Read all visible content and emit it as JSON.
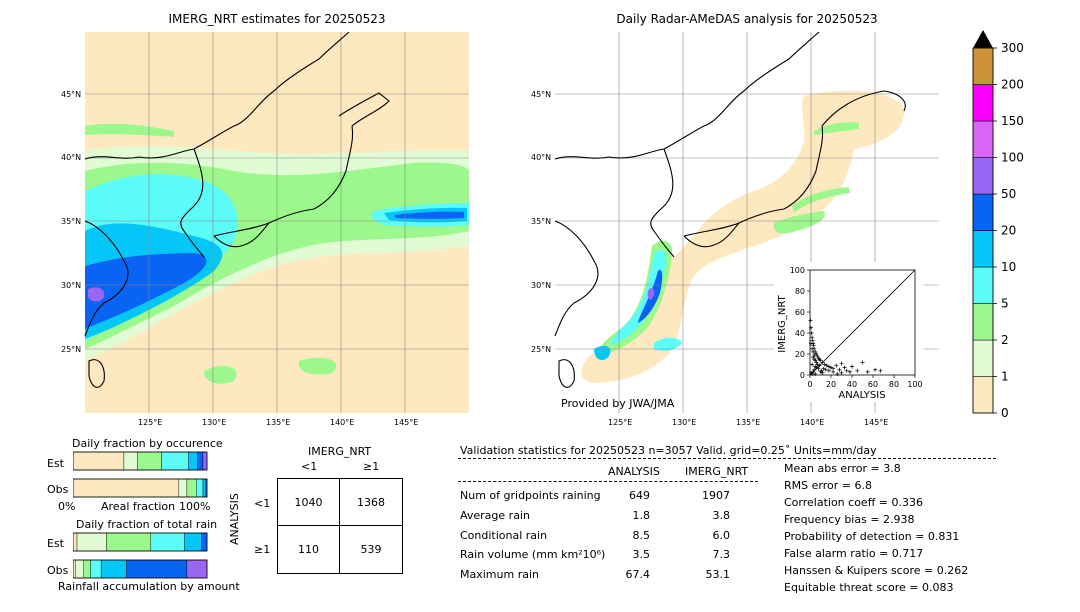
{
  "left_map": {
    "title": "IMERG_NRT estimates for 20250523",
    "lat_labels": [
      "45°N",
      "40°N",
      "35°N",
      "30°N",
      "25°N"
    ],
    "lon_labels": [
      "125°E",
      "130°E",
      "135°E",
      "140°E",
      "145°E"
    ]
  },
  "right_map": {
    "title": "Daily Radar-AMeDAS analysis for 20250523",
    "lat_labels": [
      "45°N",
      "40°N",
      "35°N",
      "30°N",
      "25°N"
    ],
    "lon_labels": [
      "125°E",
      "130°E",
      "135°E",
      "140°E",
      "145°E"
    ],
    "credit": "Provided by JWA/JMA"
  },
  "colorbar": {
    "levels": [
      "0",
      "1",
      "2",
      "5",
      "10",
      "20",
      "50",
      "100",
      "150",
      "200",
      "300"
    ],
    "colors": [
      "#fde8c0",
      "#e1fbd4",
      "#9cf88c",
      "#5bfbf7",
      "#04c7f8",
      "#0964f4",
      "#9a66f4",
      "#d966f7",
      "#fb01fb",
      "#cc9338"
    ]
  },
  "fraction_occurrence": {
    "title": "Daily fraction by occurence",
    "row_labels": [
      "Est",
      "Obs"
    ],
    "axis_left": "0%",
    "axis_mid": "Areal fraction",
    "axis_right": "100%",
    "est_fractions": [
      0.38,
      0.1,
      0.18,
      0.2,
      0.07,
      0.04,
      0.03
    ],
    "obs_fractions": [
      0.79,
      0.06,
      0.07,
      0.05,
      0.02,
      0.01
    ]
  },
  "fraction_total": {
    "title": "Daily fraction of total rain",
    "row_labels": [
      "Est",
      "Obs"
    ],
    "axis_caption": "Rainfall accumulation by amount",
    "est_fractions": [
      0.03,
      0.22,
      0.33,
      0.25,
      0.13,
      0.04
    ],
    "obs_fractions": [
      0.02,
      0.06,
      0.05,
      0.08,
      0.19,
      0.45,
      0.15
    ]
  },
  "contingency": {
    "title": "IMERG_NRT",
    "col_labels": [
      "<1",
      "≥1"
    ],
    "row_title": "ANALYSIS",
    "row_labels": [
      "<1",
      "≥1"
    ],
    "cells": [
      [
        "1040",
        "1368"
      ],
      [
        "110",
        "539"
      ]
    ]
  },
  "validation": {
    "header": "Validation statistics for 20250523  n=3057 Valid. grid=0.25˚ Units=mm/day",
    "col_analysis": "ANALYSIS",
    "col_imerg": "IMERG_NRT",
    "rows": [
      {
        "label": "Num of gridpoints raining",
        "analysis": "649",
        "imerg": "1907"
      },
      {
        "label": "Average rain",
        "analysis": "1.8",
        "imerg": "3.8"
      },
      {
        "label": "Conditional rain",
        "analysis": "8.5",
        "imerg": "6.0"
      },
      {
        "label": "Rain volume (mm km²10⁶)",
        "analysis": "3.5",
        "imerg": "7.3"
      },
      {
        "label": "Maximum rain",
        "analysis": "67.4",
        "imerg": "53.1"
      }
    ],
    "scores": [
      "Mean abs error =    3.8",
      "RMS error =    6.8",
      "Correlation coeff =  0.336",
      "Frequency bias =  2.938",
      "Probability of detection =  0.831",
      "False alarm ratio =  0.717",
      "Hanssen & Kuipers score =  0.262",
      "Equitable threat score =  0.083"
    ]
  },
  "chart_data": {
    "type": "scatter",
    "title": "",
    "xlabel": "ANALYSIS",
    "ylabel": "IMERG_NRT",
    "xlim": [
      0,
      100
    ],
    "ylim": [
      0,
      100
    ],
    "xticks": [
      "0",
      "20",
      "40",
      "60",
      "80",
      "100"
    ],
    "yticks": [
      "0",
      "20",
      "40",
      "60",
      "80",
      "100"
    ],
    "reference_line": "1:1",
    "x": [
      0.5,
      1,
      1.5,
      2,
      2.5,
      3,
      3.5,
      4,
      5,
      6,
      7,
      8,
      9,
      10,
      12,
      14,
      16,
      18,
      20,
      22,
      25,
      28,
      30,
      33,
      35,
      38,
      40,
      45,
      50,
      55,
      62,
      67,
      1,
      2,
      3,
      4,
      5,
      6,
      8,
      10,
      12,
      15,
      18,
      22,
      26,
      30,
      3,
      5,
      7,
      2,
      4,
      6,
      9,
      11,
      13,
      1,
      3,
      5,
      2,
      4
    ],
    "y": [
      52,
      45,
      40,
      36,
      33,
      30,
      28,
      25,
      22,
      20,
      18,
      16,
      15,
      14,
      12,
      10,
      9,
      8,
      7,
      6,
      9,
      5,
      11,
      7,
      4,
      3,
      8,
      4,
      12,
      3,
      5,
      4,
      2,
      1,
      3,
      5,
      8,
      12,
      6,
      3,
      2,
      5,
      4,
      3,
      1,
      2,
      17,
      14,
      10,
      25,
      19,
      7,
      9,
      4,
      6,
      30,
      22,
      1,
      10,
      15
    ]
  }
}
